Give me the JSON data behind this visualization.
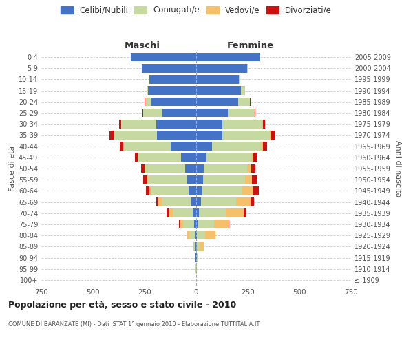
{
  "age_groups": [
    "100+",
    "95-99",
    "90-94",
    "85-89",
    "80-84",
    "75-79",
    "70-74",
    "65-69",
    "60-64",
    "55-59",
    "50-54",
    "45-49",
    "40-44",
    "35-39",
    "30-34",
    "25-29",
    "20-24",
    "15-19",
    "10-14",
    "5-9",
    "0-4"
  ],
  "birth_years": [
    "≤ 1909",
    "1910-1914",
    "1915-1919",
    "1920-1924",
    "1925-1929",
    "1930-1934",
    "1935-1939",
    "1940-1944",
    "1945-1949",
    "1950-1954",
    "1955-1959",
    "1960-1964",
    "1965-1969",
    "1970-1974",
    "1975-1979",
    "1980-1984",
    "1985-1989",
    "1990-1994",
    "1995-1999",
    "2000-2004",
    "2005-2009"
  ],
  "male_celibe": [
    1,
    1,
    2,
    3,
    5,
    10,
    18,
    28,
    38,
    42,
    52,
    72,
    125,
    190,
    192,
    165,
    220,
    232,
    228,
    262,
    318
  ],
  "male_coniugato": [
    0,
    1,
    3,
    8,
    28,
    52,
    95,
    140,
    180,
    192,
    196,
    210,
    225,
    210,
    170,
    92,
    28,
    8,
    2,
    1,
    0
  ],
  "male_vedovo": [
    0,
    0,
    1,
    4,
    14,
    18,
    22,
    14,
    9,
    4,
    3,
    2,
    2,
    1,
    1,
    0,
    0,
    0,
    0,
    0,
    0
  ],
  "male_divorziato": [
    0,
    0,
    0,
    0,
    0,
    4,
    7,
    11,
    18,
    18,
    16,
    14,
    18,
    18,
    10,
    4,
    2,
    1,
    0,
    0,
    0
  ],
  "female_nubile": [
    0,
    1,
    2,
    4,
    4,
    7,
    14,
    22,
    28,
    32,
    38,
    48,
    78,
    125,
    128,
    152,
    202,
    218,
    208,
    248,
    308
  ],
  "female_coniugata": [
    0,
    1,
    3,
    12,
    38,
    78,
    128,
    170,
    196,
    206,
    210,
    218,
    238,
    232,
    192,
    128,
    58,
    18,
    4,
    1,
    0
  ],
  "female_vedova": [
    0,
    1,
    4,
    22,
    52,
    72,
    88,
    72,
    52,
    32,
    18,
    10,
    7,
    4,
    2,
    2,
    1,
    0,
    0,
    0,
    0
  ],
  "female_divorziata": [
    0,
    0,
    0,
    0,
    0,
    4,
    11,
    16,
    26,
    28,
    22,
    16,
    20,
    20,
    12,
    6,
    2,
    1,
    0,
    0,
    0
  ],
  "colors": {
    "celibe": "#4472c4",
    "coniugato": "#c5d9a0",
    "vedovo": "#f4c06a",
    "divorziato": "#cc1111"
  },
  "legend_labels": [
    "Celibi/Nubili",
    "Coniugati/e",
    "Vedovi/e",
    "Divorziati/e"
  ],
  "title": "Popolazione per età, sesso e stato civile - 2010",
  "subtitle": "COMUNE DI BARANZATE (MI) - Dati ISTAT 1° gennaio 2010 - Elaborazione TUTTITALIA.IT",
  "label_maschi": "Maschi",
  "label_femmine": "Femmine",
  "ylabel_left": "Fasce di età",
  "ylabel_right": "Anni di nascita",
  "xlim": 750,
  "bg_color": "#ffffff",
  "grid_color": "#cccccc",
  "bar_height": 0.78
}
